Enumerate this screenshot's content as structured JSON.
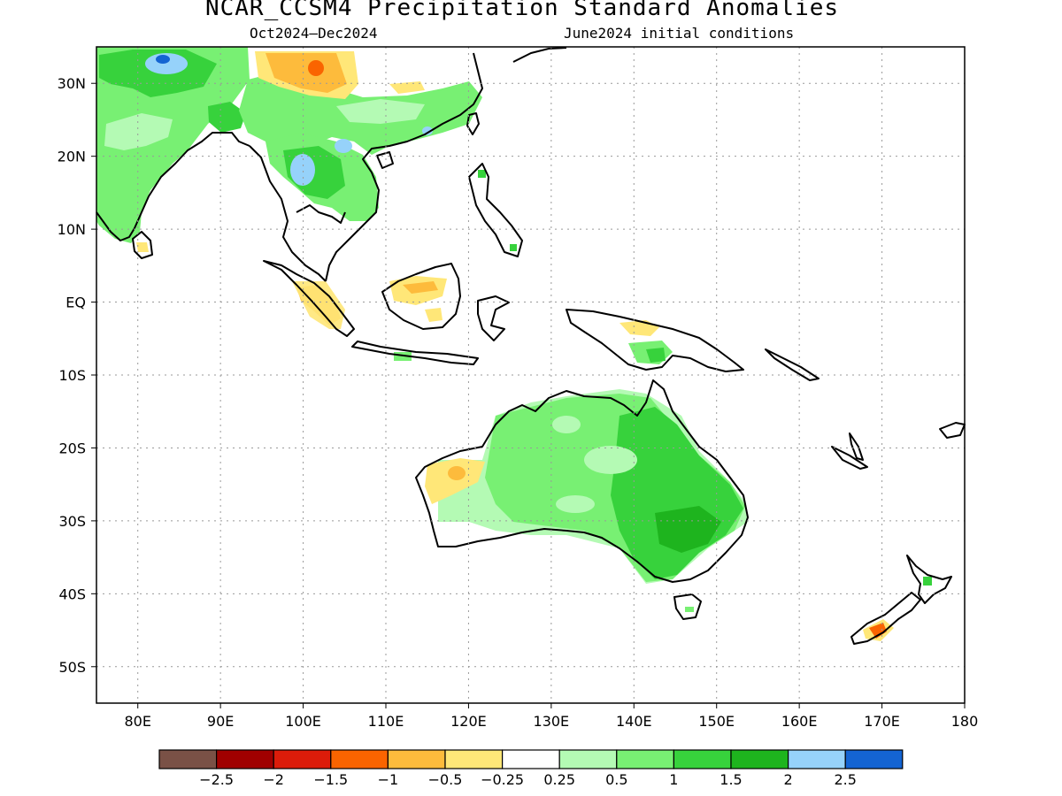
{
  "title": "NCAR_CCSM4 Precipitation Standard Anomalies",
  "subtitle_left": "Oct2024–Dec2024",
  "subtitle_right": "June2024 initial conditions",
  "map": {
    "lon_range": [
      75,
      180
    ],
    "lat_range": [
      -55,
      35
    ],
    "lon_ticks": [
      "80E",
      "90E",
      "100E",
      "110E",
      "120E",
      "130E",
      "140E",
      "150E",
      "160E",
      "170E",
      "180"
    ],
    "lat_ticks": [
      "30N",
      "20N",
      "10N",
      "EQ",
      "10S",
      "20S",
      "30S",
      "40S",
      "50S"
    ],
    "gridlines": "dotted"
  },
  "legend": {
    "colors": [
      "#7a5146",
      "#a00000",
      "#dc1c0a",
      "#fa6400",
      "#fdbb3c",
      "#ffe778",
      "#ffffff",
      "#b4fab4",
      "#78f073",
      "#37d23c",
      "#1eb41e",
      "#96d2fa",
      "#1464d2"
    ],
    "labels": [
      "−2.5",
      "−2",
      "−1.5",
      "−1",
      "−0.5",
      "−0.25",
      "0.25",
      "0.5",
      "1",
      "1.5",
      "2",
      "2.5"
    ]
  }
}
